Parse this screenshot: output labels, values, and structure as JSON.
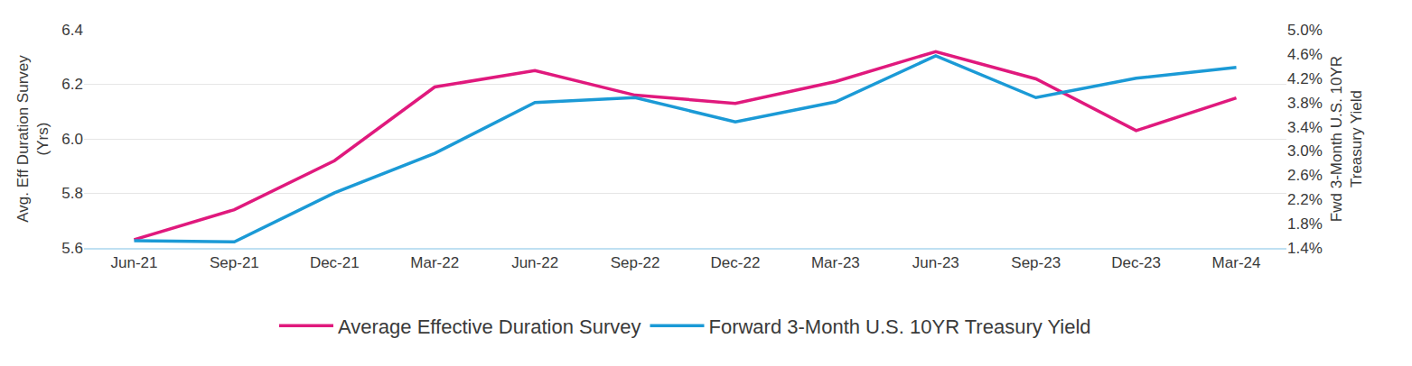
{
  "chart_data": {
    "type": "line",
    "categories": [
      "Jun-21",
      "Sep-21",
      "Dec-21",
      "Mar-22",
      "Jun-22",
      "Sep-22",
      "Dec-22",
      "Mar-23",
      "Jun-23",
      "Sep-23",
      "Dec-23",
      "Mar-24"
    ],
    "series": [
      {
        "name": "Average Effective Duration Survey",
        "color": "#e0197d",
        "axis": "y",
        "values": [
          5.63,
          5.74,
          5.92,
          6.19,
          6.25,
          6.16,
          6.13,
          6.21,
          6.32,
          6.22,
          6.03,
          6.15
        ]
      },
      {
        "name": "Forward 3-Month U.S. 10YR Treasury Yield",
        "color": "#1b9ad6",
        "axis": "y2",
        "values": [
          1.52,
          1.5,
          2.31,
          2.96,
          3.8,
          3.88,
          3.48,
          3.81,
          4.57,
          3.88,
          4.2,
          4.38
        ]
      }
    ],
    "ylabel": [
      "Avg. Eff Duration Survey",
      "(Yrs)"
    ],
    "y2label": [
      "Fwd 3-Month U.S. 10YR",
      "Treasury Yield"
    ],
    "ylim": [
      5.6,
      6.4
    ],
    "yticks": [
      5.6,
      5.8,
      {
        "value": 6,
        "label": "6.0"
      },
      6.2,
      6.4
    ],
    "y2lim": [
      1.4,
      5.0
    ],
    "y2ticks": [
      {
        "value": 1.4,
        "label": "1.4%"
      },
      {
        "value": 1.8,
        "label": "1.8%"
      },
      {
        "value": 2.2,
        "label": "2.2%"
      },
      {
        "value": 2.6,
        "label": "2.6%"
      },
      {
        "value": 3.0,
        "label": "3.0%"
      },
      {
        "value": 3.4,
        "label": "3.4%"
      },
      {
        "value": 3.8,
        "label": "3.8%"
      },
      {
        "value": 4.2,
        "label": "4.2%"
      },
      {
        "value": 4.6,
        "label": "4.6%"
      },
      {
        "value": 5.0,
        "label": "5.0%"
      }
    ],
    "grid": true,
    "legend": "bottom"
  }
}
